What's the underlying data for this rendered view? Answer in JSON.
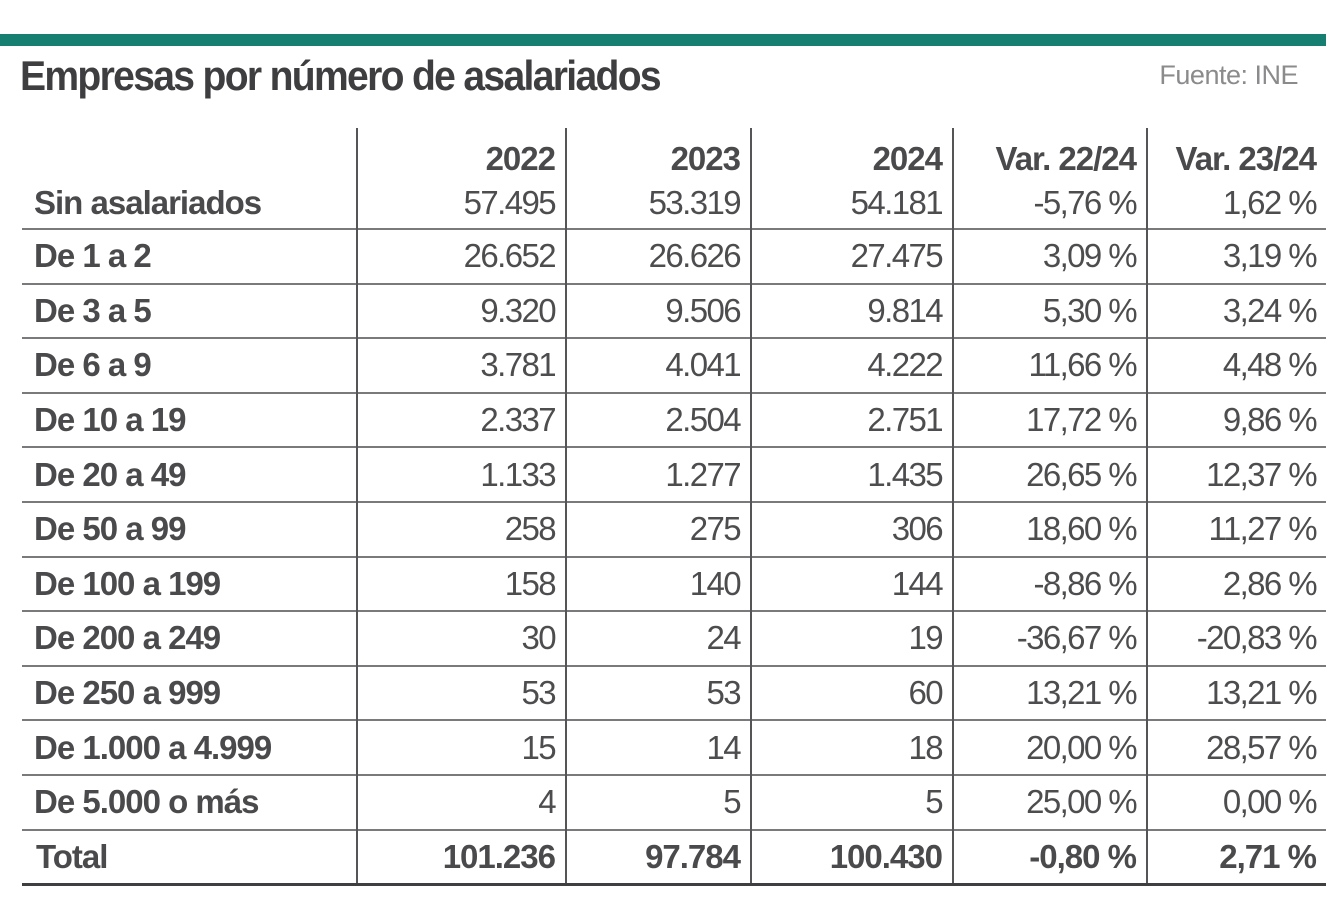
{
  "header": {
    "accent_color": "#177f71",
    "title": "Empresas por número de asalariados",
    "source": "Fuente: INE"
  },
  "table": {
    "columns": [
      "",
      "2022",
      "2023",
      "2024",
      "Var. 22/24",
      "Var. 23/24"
    ],
    "rows": [
      {
        "label": "Sin asalariados",
        "values": [
          "57.495",
          "53.319",
          "54.181",
          "-5,76 %",
          "1,62 %"
        ]
      },
      {
        "label": "De 1 a 2",
        "values": [
          "26.652",
          "26.626",
          "27.475",
          "3,09 %",
          "3,19 %"
        ]
      },
      {
        "label": "De 3 a 5",
        "values": [
          "9.320",
          "9.506",
          "9.814",
          "5,30 %",
          "3,24 %"
        ]
      },
      {
        "label": "De 6 a 9",
        "values": [
          "3.781",
          "4.041",
          "4.222",
          "11,66 %",
          "4,48 %"
        ]
      },
      {
        "label": "De 10 a 19",
        "values": [
          "2.337",
          "2.504",
          "2.751",
          "17,72 %",
          "9,86 %"
        ]
      },
      {
        "label": "De 20 a 49",
        "values": [
          "1.133",
          "1.277",
          "1.435",
          "26,65 %",
          "12,37 %"
        ]
      },
      {
        "label": "De 50 a 99",
        "values": [
          "258",
          "275",
          "306",
          "18,60 %",
          "11,27 %"
        ]
      },
      {
        "label": "De 100 a 199",
        "values": [
          "158",
          "140",
          "144",
          "-8,86 %",
          "2,86 %"
        ]
      },
      {
        "label": "De 200 a 249",
        "values": [
          "30",
          "24",
          "19",
          "-36,67 %",
          "-20,83 %"
        ]
      },
      {
        "label": "De 250 a 999",
        "values": [
          "53",
          "53",
          "60",
          "13,21 %",
          "13,21 %"
        ]
      },
      {
        "label": "De 1.000 a 4.999",
        "values": [
          "15",
          "14",
          "18",
          "20,00 %",
          "28,57 %"
        ]
      },
      {
        "label": "De 5.000 o más",
        "values": [
          "4",
          "5",
          "5",
          "25,00 %",
          "0,00 %"
        ]
      }
    ],
    "total": {
      "label": "Total",
      "values": [
        "101.236",
        "97.784",
        "100.430",
        "-0,80 %",
        "2,71 %"
      ]
    }
  }
}
